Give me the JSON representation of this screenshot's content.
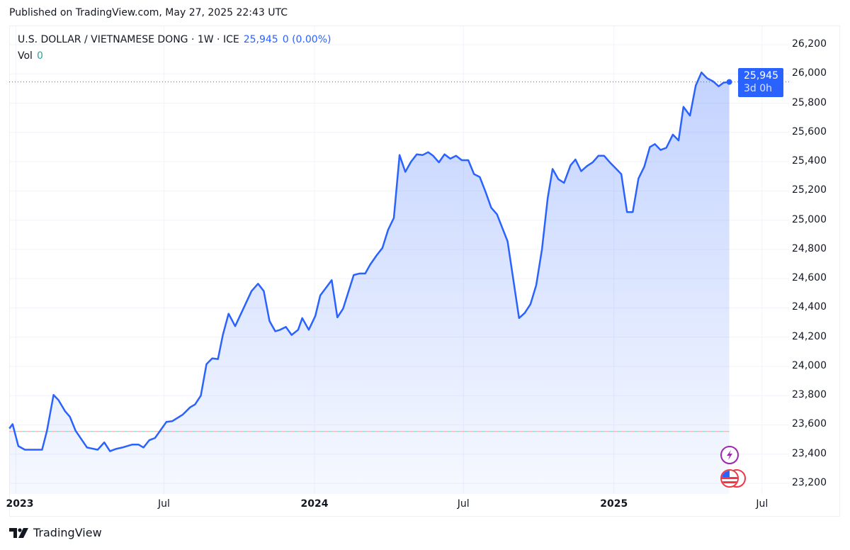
{
  "header": {
    "published": "Published on TradingView.com, May 27, 2025 22:43 UTC"
  },
  "legend": {
    "symbol": "U.S. DOLLAR / VIETNAMESE DONG · 1W · ICE",
    "price": "25,945",
    "change": "0 (0.00%)",
    "vol_label": "Vol",
    "vol_value": "0"
  },
  "price_tag": {
    "price": "25,945",
    "countdown": "3d 0h"
  },
  "footer": {
    "logo_text": "TradingView"
  },
  "colors": {
    "line": "#2962FF",
    "price_tag": "#2962FF",
    "vol": "#26A69A",
    "reference_dash_a": "#F7A1A1",
    "reference_dash_b": "#7FCFC7"
  },
  "icons": [
    "lightning-event-icon",
    "us-flag-event-icon"
  ],
  "chart_data": {
    "type": "area",
    "ylim": [
      23100,
      26300
    ],
    "y_ticks": [
      "26,200",
      "26,000",
      "25,800",
      "25,600",
      "25,400",
      "25,200",
      "25,000",
      "24,800",
      "24,600",
      "24,400",
      "24,200",
      "24,000",
      "23,800",
      "23,600",
      "23,400",
      "23,200"
    ],
    "y_tick_values": [
      26200,
      26000,
      25800,
      25600,
      25400,
      25200,
      25000,
      24800,
      24600,
      24400,
      24200,
      24000,
      23800,
      23600,
      23400,
      23200
    ],
    "x_ticks": [
      {
        "label": "2023",
        "date": "2023-01-01",
        "year": true
      },
      {
        "label": "Jul",
        "date": "2023-07-01",
        "year": false
      },
      {
        "label": "2024",
        "date": "2024-01-01",
        "year": true
      },
      {
        "label": "Jul",
        "date": "2024-07-01",
        "year": false
      },
      {
        "label": "2025",
        "date": "2025-01-01",
        "year": true
      },
      {
        "label": "Jul",
        "date": "2025-07-01",
        "year": false
      }
    ],
    "grid": true,
    "last_price": 25945,
    "reference_line": 23555,
    "points": [
      [
        "2022-12-24",
        23575
      ],
      [
        "2022-12-28",
        23605
      ],
      [
        "2023-01-04",
        23455
      ],
      [
        "2023-01-12",
        23430
      ],
      [
        "2023-02-02",
        23430
      ],
      [
        "2023-02-08",
        23560
      ],
      [
        "2023-02-16",
        23805
      ],
      [
        "2023-02-22",
        23770
      ],
      [
        "2023-03-02",
        23695
      ],
      [
        "2023-03-08",
        23655
      ],
      [
        "2023-03-15",
        23560
      ],
      [
        "2023-03-29",
        23445
      ],
      [
        "2023-04-11",
        23430
      ],
      [
        "2023-04-19",
        23480
      ],
      [
        "2023-04-26",
        23420
      ],
      [
        "2023-05-03",
        23435
      ],
      [
        "2023-05-11",
        23445
      ],
      [
        "2023-05-23",
        23465
      ],
      [
        "2023-05-31",
        23465
      ],
      [
        "2023-06-06",
        23445
      ],
      [
        "2023-06-13",
        23495
      ],
      [
        "2023-06-20",
        23510
      ],
      [
        "2023-07-04",
        23620
      ],
      [
        "2023-07-11",
        23625
      ],
      [
        "2023-07-24",
        23670
      ],
      [
        "2023-08-02",
        23720
      ],
      [
        "2023-08-08",
        23740
      ],
      [
        "2023-08-15",
        23800
      ],
      [
        "2023-08-22",
        24015
      ],
      [
        "2023-08-29",
        24055
      ],
      [
        "2023-09-05",
        24050
      ],
      [
        "2023-09-11",
        24215
      ],
      [
        "2023-09-18",
        24360
      ],
      [
        "2023-09-26",
        24275
      ],
      [
        "2023-10-16",
        24515
      ],
      [
        "2023-10-24",
        24565
      ],
      [
        "2023-10-31",
        24515
      ],
      [
        "2023-11-07",
        24310
      ],
      [
        "2023-11-14",
        24240
      ],
      [
        "2023-11-20",
        24250
      ],
      [
        "2023-11-27",
        24270
      ],
      [
        "2023-12-04",
        24215
      ],
      [
        "2023-12-12",
        24250
      ],
      [
        "2023-12-17",
        24330
      ],
      [
        "2023-12-25",
        24250
      ],
      [
        "2024-01-02",
        24345
      ],
      [
        "2024-01-08",
        24485
      ],
      [
        "2024-01-22",
        24590
      ],
      [
        "2024-01-29",
        24335
      ],
      [
        "2024-02-05",
        24395
      ],
      [
        "2024-02-18",
        24625
      ],
      [
        "2024-02-25",
        24635
      ],
      [
        "2024-03-03",
        24635
      ],
      [
        "2024-03-09",
        24695
      ],
      [
        "2024-03-17",
        24760
      ],
      [
        "2024-03-24",
        24810
      ],
      [
        "2024-03-31",
        24935
      ],
      [
        "2024-04-07",
        25015
      ],
      [
        "2024-04-14",
        25445
      ],
      [
        "2024-04-21",
        25330
      ],
      [
        "2024-04-28",
        25400
      ],
      [
        "2024-05-05",
        25450
      ],
      [
        "2024-05-12",
        25445
      ],
      [
        "2024-05-19",
        25465
      ],
      [
        "2024-05-25",
        25440
      ],
      [
        "2024-06-01",
        25395
      ],
      [
        "2024-06-08",
        25450
      ],
      [
        "2024-06-15",
        25420
      ],
      [
        "2024-06-22",
        25440
      ],
      [
        "2024-06-29",
        25410
      ],
      [
        "2024-07-07",
        25410
      ],
      [
        "2024-07-14",
        25315
      ],
      [
        "2024-07-21",
        25295
      ],
      [
        "2024-07-28",
        25195
      ],
      [
        "2024-08-04",
        25085
      ],
      [
        "2024-08-11",
        25040
      ],
      [
        "2024-08-17",
        24955
      ],
      [
        "2024-08-24",
        24855
      ],
      [
        "2024-09-07",
        24330
      ],
      [
        "2024-09-14",
        24365
      ],
      [
        "2024-09-21",
        24425
      ],
      [
        "2024-09-28",
        24555
      ],
      [
        "2024-10-05",
        24800
      ],
      [
        "2024-10-12",
        25150
      ],
      [
        "2024-10-18",
        25350
      ],
      [
        "2024-10-25",
        25280
      ],
      [
        "2024-11-01",
        25255
      ],
      [
        "2024-11-09",
        25375
      ],
      [
        "2024-11-15",
        25415
      ],
      [
        "2024-11-22",
        25335
      ],
      [
        "2024-11-29",
        25370
      ],
      [
        "2024-12-06",
        25395
      ],
      [
        "2024-12-13",
        25440
      ],
      [
        "2024-12-20",
        25440
      ],
      [
        "2024-12-27",
        25395
      ],
      [
        "2025-01-03",
        25355
      ],
      [
        "2025-01-10",
        25315
      ],
      [
        "2025-01-17",
        25055
      ],
      [
        "2025-01-24",
        25055
      ],
      [
        "2025-01-31",
        25285
      ],
      [
        "2025-02-07",
        25365
      ],
      [
        "2025-02-14",
        25500
      ],
      [
        "2025-02-20",
        25520
      ],
      [
        "2025-02-27",
        25480
      ],
      [
        "2025-03-06",
        25495
      ],
      [
        "2025-03-14",
        25585
      ],
      [
        "2025-03-21",
        25545
      ],
      [
        "2025-03-27",
        25775
      ],
      [
        "2025-04-04",
        25715
      ],
      [
        "2025-04-11",
        25920
      ],
      [
        "2025-04-18",
        26010
      ],
      [
        "2025-04-25",
        25970
      ],
      [
        "2025-05-02",
        25950
      ],
      [
        "2025-05-09",
        25915
      ],
      [
        "2025-05-15",
        25940
      ],
      [
        "2025-05-22",
        25945
      ]
    ]
  }
}
